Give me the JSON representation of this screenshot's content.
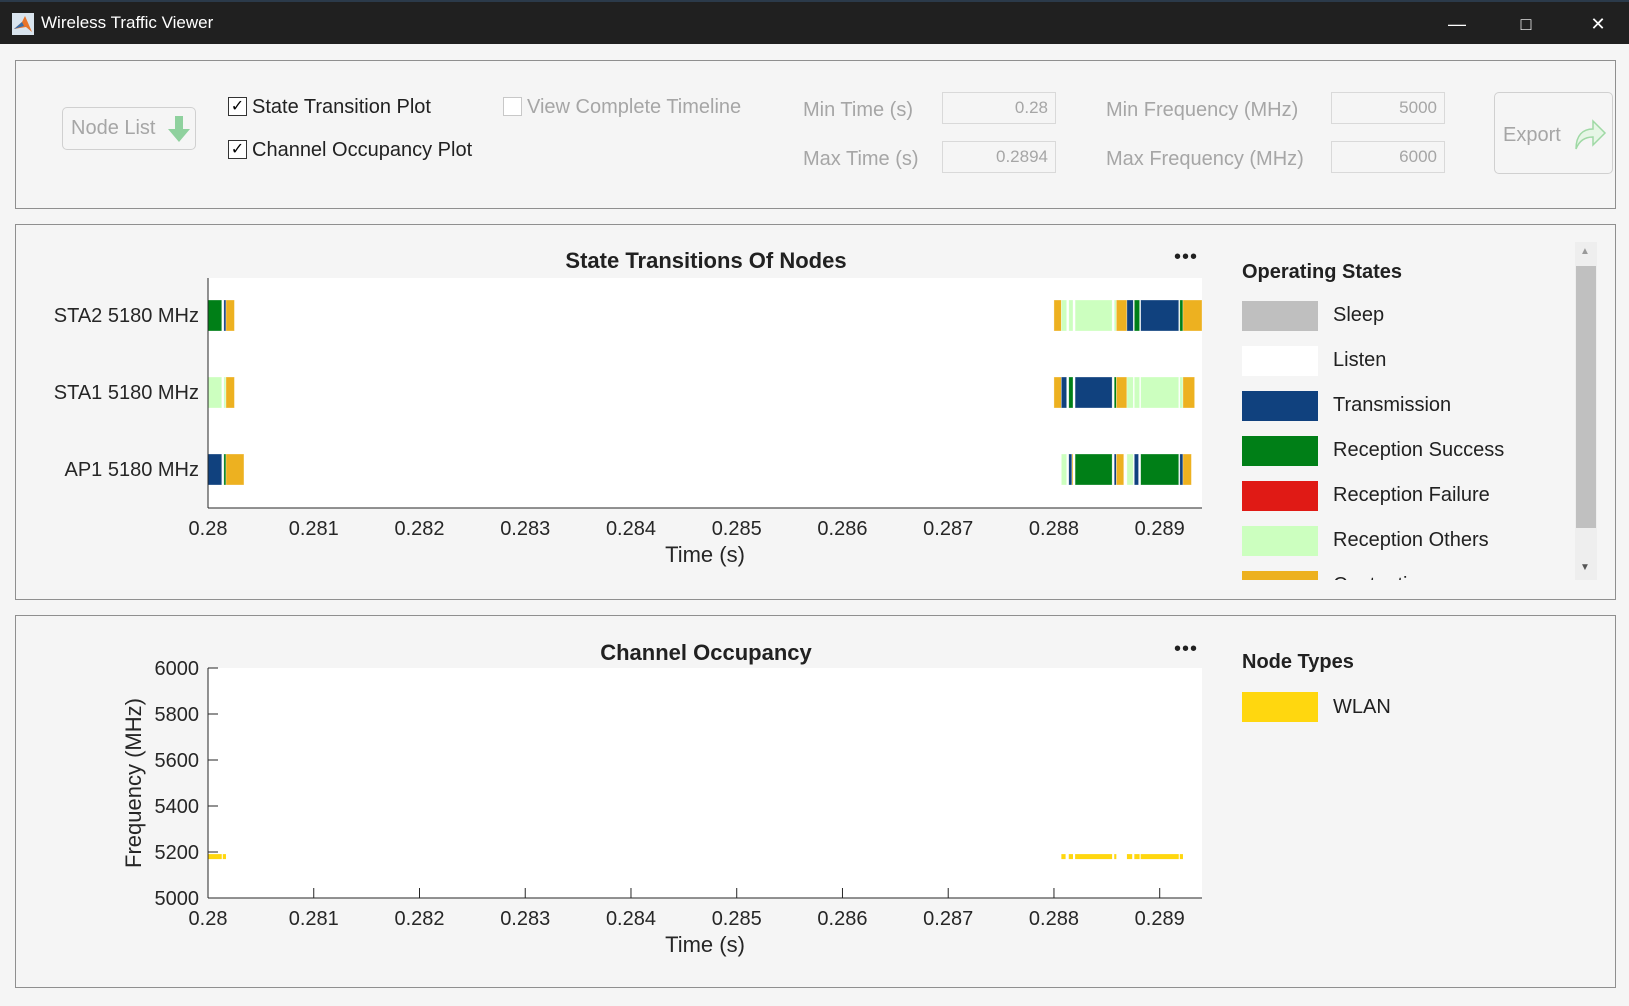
{
  "window": {
    "title": "Wireless Traffic Viewer",
    "minimize_icon": "minimize-icon",
    "maximize_icon": "maximize-icon",
    "close_icon": "close-icon"
  },
  "controls": {
    "node_list": "Node List",
    "state_transition_plot": {
      "label": "State Transition Plot",
      "checked": true
    },
    "channel_occupancy_plot": {
      "label": "Channel Occupancy Plot",
      "checked": true
    },
    "view_complete_timeline": {
      "label": "View Complete Timeline",
      "checked": false
    },
    "min_time_label": "Min Time (s)",
    "min_time": "0.28",
    "max_time_label": "Max Time (s)",
    "max_time": "0.2894",
    "min_freq_label": "Min Frequency (MHz)",
    "min_freq": "5000",
    "max_freq_label": "Max Frequency (MHz)",
    "max_freq": "6000",
    "export": "Export"
  },
  "colors": {
    "Sleep": "#bfbfbf",
    "Listen": "#ffffff",
    "Transmission": "#10417e",
    "Reception Success": "#007f17",
    "Reception Failure": "#e01a15",
    "Reception Others": "#ccffbf",
    "Contention": "#edb120",
    "WLAN": "#ffd70f"
  },
  "legend_states": {
    "title": "Operating States",
    "items": [
      "Sleep",
      "Listen",
      "Transmission",
      "Reception Success",
      "Reception Failure",
      "Reception Others",
      "Contention"
    ]
  },
  "legend_nodes": {
    "title": "Node Types",
    "items": [
      "WLAN"
    ]
  },
  "chart_data": [
    {
      "type": "bar",
      "title": "State Transitions Of Nodes",
      "xlabel": "Time (s)",
      "xlim": [
        0.28,
        0.2894
      ],
      "xticks": [
        "0.28",
        "0.281",
        "0.282",
        "0.283",
        "0.284",
        "0.285",
        "0.286",
        "0.287",
        "0.288",
        "0.289"
      ],
      "categories": [
        "STA2 5180 MHz",
        "STA1 5180 MHz",
        "AP1 5180 MHz"
      ],
      "series": [
        {
          "node": "STA2 5180 MHz",
          "segments": [
            [
              0.28,
              0.28013,
              "Reception Success"
            ],
            [
              0.28015,
              0.28017,
              "Transmission"
            ],
            [
              0.28017,
              0.28025,
              "Contention"
            ],
            [
              0.288,
              0.28807,
              "Contention"
            ],
            [
              0.28807,
              0.28812,
              "Reception Others"
            ],
            [
              0.28814,
              0.28818,
              "Reception Others"
            ],
            [
              0.2882,
              0.28855,
              "Reception Others"
            ],
            [
              0.28857,
              0.28859,
              "Reception Others"
            ],
            [
              0.28859,
              0.28869,
              "Contention"
            ],
            [
              0.28869,
              0.28875,
              "Transmission"
            ],
            [
              0.28876,
              0.28881,
              "Reception Success"
            ],
            [
              0.28882,
              0.28918,
              "Transmission"
            ],
            [
              0.28919,
              0.28922,
              "Reception Success"
            ],
            [
              0.28922,
              0.2894,
              "Contention"
            ]
          ]
        },
        {
          "node": "STA1 5180 MHz",
          "segments": [
            [
              0.28,
              0.28013,
              "Reception Others"
            ],
            [
              0.28015,
              0.28017,
              "Reception Others"
            ],
            [
              0.28017,
              0.28025,
              "Contention"
            ],
            [
              0.288,
              0.28807,
              "Contention"
            ],
            [
              0.28807,
              0.28812,
              "Transmission"
            ],
            [
              0.28814,
              0.28818,
              "Reception Success"
            ],
            [
              0.2882,
              0.28855,
              "Transmission"
            ],
            [
              0.28857,
              0.28859,
              "Reception Success"
            ],
            [
              0.28859,
              0.28869,
              "Contention"
            ],
            [
              0.28869,
              0.28875,
              "Reception Others"
            ],
            [
              0.28876,
              0.28881,
              "Reception Others"
            ],
            [
              0.28882,
              0.28918,
              "Reception Others"
            ],
            [
              0.28919,
              0.28922,
              "Reception Others"
            ],
            [
              0.28922,
              0.28933,
              "Contention"
            ]
          ]
        },
        {
          "node": "AP1 5180 MHz",
          "segments": [
            [
              0.28,
              0.28013,
              "Transmission"
            ],
            [
              0.28015,
              0.28017,
              "Reception Success"
            ],
            [
              0.28017,
              0.28034,
              "Contention"
            ],
            [
              0.28807,
              0.28812,
              "Reception Others"
            ],
            [
              0.28814,
              0.28817,
              "Transmission"
            ],
            [
              0.28817,
              0.28818,
              "Contention"
            ],
            [
              0.2882,
              0.28855,
              "Reception Success"
            ],
            [
              0.28857,
              0.28859,
              "Transmission"
            ],
            [
              0.28859,
              0.28866,
              "Contention"
            ],
            [
              0.28869,
              0.28875,
              "Reception Others"
            ],
            [
              0.28876,
              0.2888,
              "Transmission"
            ],
            [
              0.28882,
              0.28918,
              "Reception Success"
            ],
            [
              0.28919,
              0.28922,
              "Transmission"
            ],
            [
              0.28922,
              0.2893,
              "Contention"
            ]
          ]
        }
      ]
    },
    {
      "type": "line",
      "title": "Channel Occupancy",
      "xlabel": "Time (s)",
      "ylabel": "Frequency (MHz)",
      "xlim": [
        0.28,
        0.2894
      ],
      "ylim": [
        5000,
        6000
      ],
      "xticks": [
        "0.28",
        "0.281",
        "0.282",
        "0.283",
        "0.284",
        "0.285",
        "0.286",
        "0.287",
        "0.288",
        "0.289"
      ],
      "yticks": [
        "5000",
        "5200",
        "5400",
        "5600",
        "5800",
        "6000"
      ],
      "series": [
        {
          "name": "WLAN",
          "frequency": 5180,
          "segments": [
            [
              0.28,
              0.28013
            ],
            [
              0.28014,
              0.28017
            ],
            [
              0.28807,
              0.28811
            ],
            [
              0.28814,
              0.28818
            ],
            [
              0.2882,
              0.28855
            ],
            [
              0.28857,
              0.28859
            ],
            [
              0.28869,
              0.28874
            ],
            [
              0.28876,
              0.28881
            ],
            [
              0.28882,
              0.28918
            ],
            [
              0.28919,
              0.28922
            ]
          ]
        }
      ]
    }
  ]
}
